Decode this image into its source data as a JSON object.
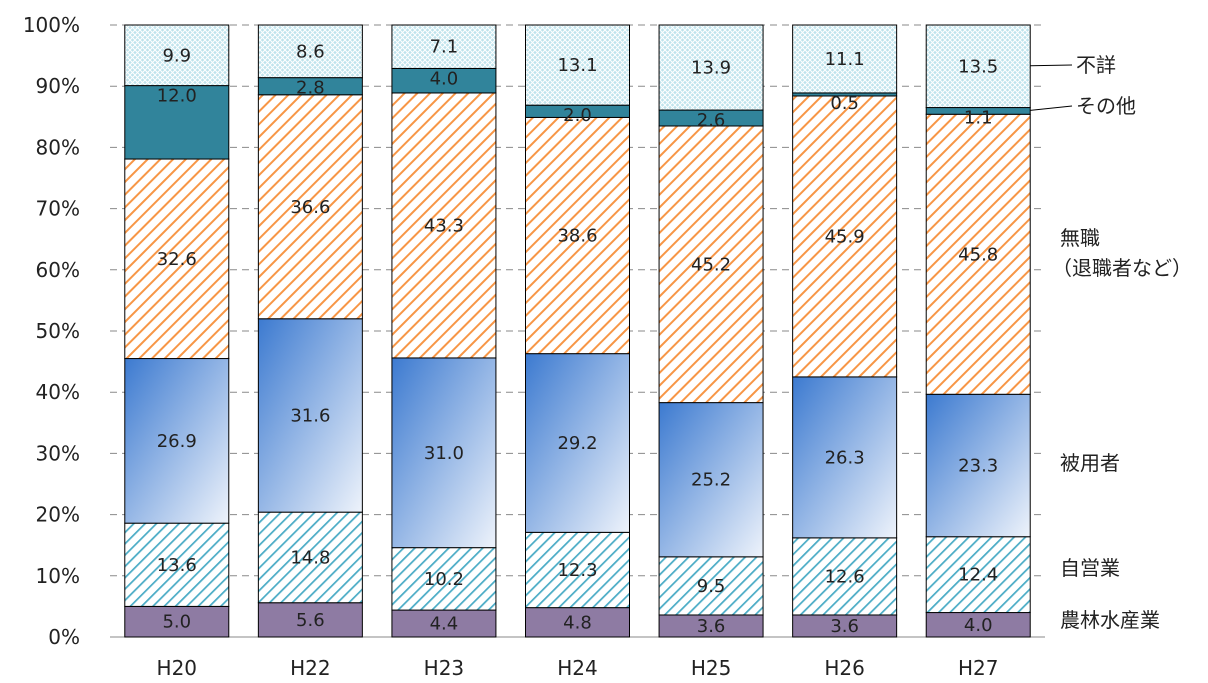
{
  "chart_data": {
    "type": "bar",
    "stacked": true,
    "percent": true,
    "categories": [
      "H20",
      "H22",
      "H23",
      "H24",
      "H25",
      "H26",
      "H27"
    ],
    "series": [
      {
        "name": "農林水産業",
        "values": [
          5.0,
          5.6,
          4.4,
          4.8,
          3.6,
          3.6,
          4.0
        ],
        "color": "#8e7ba3",
        "pattern": "solid"
      },
      {
        "name": "自営業",
        "values": [
          13.6,
          14.8,
          10.2,
          12.3,
          9.5,
          12.6,
          12.4
        ],
        "color": "#4bacc6",
        "pattern": "hatch"
      },
      {
        "name": "被用者",
        "values": [
          26.9,
          31.6,
          31.0,
          29.2,
          25.2,
          26.3,
          23.3
        ],
        "color": "#4f81bd",
        "pattern": "gradient"
      },
      {
        "name": "無職\n（退職者など）",
        "values": [
          32.6,
          36.6,
          43.3,
          38.6,
          45.2,
          45.9,
          45.8
        ],
        "color": "#f79646",
        "pattern": "hatch"
      },
      {
        "name": "その他",
        "values": [
          12.0,
          2.8,
          4.0,
          2.0,
          2.6,
          0.5,
          1.1
        ],
        "color": "#31849b",
        "pattern": "solid"
      },
      {
        "name": "不詳",
        "values": [
          9.9,
          8.6,
          7.1,
          13.1,
          13.9,
          11.1,
          13.5
        ],
        "color": "#92cddc",
        "pattern": "crosshatch"
      }
    ],
    "ylim": [
      0,
      100
    ],
    "yticks": [
      "0%",
      "10%",
      "20%",
      "30%",
      "40%",
      "50%",
      "60%",
      "70%",
      "80%",
      "90%",
      "100%"
    ],
    "grid": "dashed horizontal",
    "legend": "right, inline labels",
    "title": "",
    "xlabel": "",
    "ylabel": ""
  }
}
